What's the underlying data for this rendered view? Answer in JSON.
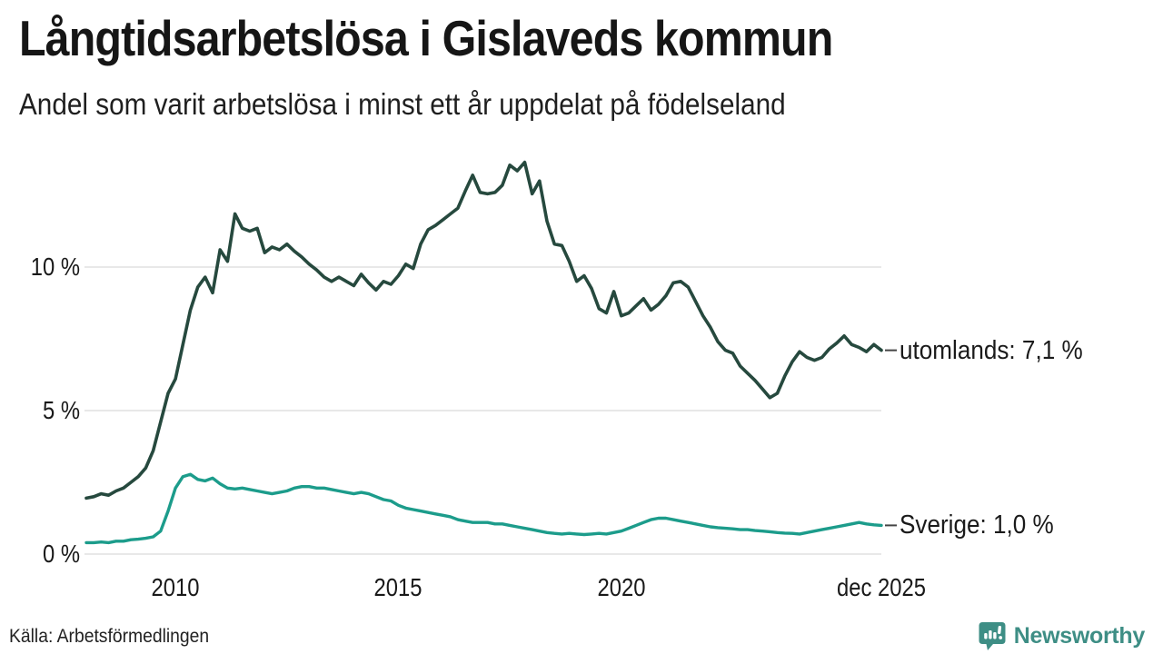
{
  "header": {
    "title": "Långtidsarbetslösa i Gislaveds kommun",
    "subtitle": "Andel som varit arbetslösa i minst ett år uppdelat på födelseland"
  },
  "footer": {
    "source": "Källa: Arbetsförmedlingen",
    "brand": "Newsworthy"
  },
  "chart_data": {
    "type": "line",
    "title": "Långtidsarbetslösa i Gislaveds kommun",
    "subtitle": "Andel som varit arbetslösa i minst ett år uppdelat på födelseland",
    "xlabel": "",
    "ylabel": "",
    "grid": true,
    "ylim": [
      0,
      14
    ],
    "ygrid_values": [
      0,
      5,
      10
    ],
    "y_ticks": [
      "0 %",
      "5 %",
      "10 %"
    ],
    "x_ticks": [
      "2010",
      "2015",
      "2020",
      "dec 2025"
    ],
    "x_range_years": [
      2008,
      2025.92
    ],
    "points_per_year": 6,
    "series": [
      {
        "name": "utomlands",
        "label": "utomlands: 7,1 %",
        "last_value": 7.1,
        "color": "#26493E",
        "values": [
          1.95,
          2.0,
          2.1,
          2.05,
          2.2,
          2.3,
          2.5,
          2.7,
          3.0,
          3.6,
          4.6,
          5.6,
          6.1,
          7.3,
          8.5,
          9.3,
          9.65,
          9.1,
          10.6,
          10.2,
          11.85,
          11.35,
          11.25,
          11.35,
          10.5,
          10.7,
          10.6,
          10.8,
          10.55,
          10.35,
          10.1,
          9.9,
          9.65,
          9.5,
          9.65,
          9.5,
          9.35,
          9.75,
          9.45,
          9.2,
          9.5,
          9.4,
          9.7,
          10.1,
          9.95,
          10.8,
          11.3,
          11.45,
          11.65,
          11.85,
          12.05,
          12.65,
          13.2,
          12.6,
          12.55,
          12.6,
          12.85,
          13.55,
          13.35,
          13.65,
          12.55,
          13.0,
          11.6,
          10.8,
          10.75,
          10.2,
          9.5,
          9.7,
          9.25,
          8.55,
          8.4,
          9.15,
          8.3,
          8.4,
          8.65,
          8.9,
          8.5,
          8.7,
          9.0,
          9.45,
          9.5,
          9.3,
          8.8,
          8.3,
          7.9,
          7.4,
          7.1,
          7.0,
          6.55,
          6.3,
          6.05,
          5.75,
          5.45,
          5.6,
          6.2,
          6.7,
          7.05,
          6.85,
          6.75,
          6.85,
          7.15,
          7.35,
          7.6,
          7.3,
          7.2,
          7.05,
          7.3,
          7.1
        ]
      },
      {
        "name": "Sverige",
        "label": "Sverige: 1,0 %",
        "last_value": 1.0,
        "color": "#1C9C8B",
        "values": [
          0.4,
          0.4,
          0.42,
          0.4,
          0.45,
          0.45,
          0.5,
          0.52,
          0.55,
          0.6,
          0.8,
          1.5,
          2.3,
          2.7,
          2.78,
          2.6,
          2.55,
          2.65,
          2.45,
          2.3,
          2.27,
          2.3,
          2.25,
          2.2,
          2.15,
          2.1,
          2.15,
          2.2,
          2.3,
          2.35,
          2.35,
          2.3,
          2.3,
          2.25,
          2.2,
          2.15,
          2.1,
          2.15,
          2.1,
          2.0,
          1.9,
          1.85,
          1.7,
          1.6,
          1.55,
          1.5,
          1.45,
          1.4,
          1.35,
          1.3,
          1.2,
          1.15,
          1.1,
          1.1,
          1.1,
          1.05,
          1.05,
          1.0,
          0.95,
          0.9,
          0.85,
          0.8,
          0.75,
          0.72,
          0.7,
          0.72,
          0.7,
          0.68,
          0.7,
          0.72,
          0.7,
          0.75,
          0.8,
          0.9,
          1.0,
          1.1,
          1.2,
          1.25,
          1.25,
          1.2,
          1.15,
          1.1,
          1.05,
          1.0,
          0.95,
          0.92,
          0.9,
          0.88,
          0.85,
          0.85,
          0.82,
          0.8,
          0.78,
          0.75,
          0.73,
          0.72,
          0.7,
          0.75,
          0.8,
          0.85,
          0.9,
          0.95,
          1.0,
          1.05,
          1.1,
          1.05,
          1.02,
          1.0
        ]
      }
    ],
    "colors": {
      "grid": "#E0E0E0",
      "text": "#191919",
      "brand": "#3E8E85"
    }
  }
}
